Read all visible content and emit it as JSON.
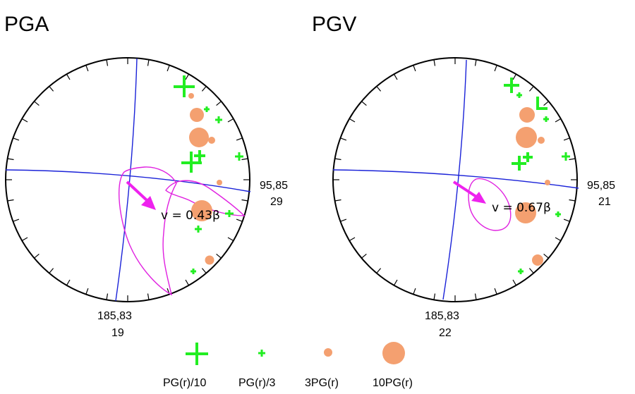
{
  "colors": {
    "plus": "#22ee22",
    "circle": "#f4a070",
    "plane": "#1a22d8",
    "contour": "#e020e0",
    "arrow": "#ee22ee",
    "outline": "#000000"
  },
  "panels": [
    {
      "title": "PGA",
      "label_east_top": "95,85",
      "label_east_bottom": "29",
      "label_south_top": "185,83",
      "label_south_bottom": "19",
      "velocity_label": "v = 0.43β"
    },
    {
      "title": "PGV",
      "label_east_top": "95,85",
      "label_east_bottom": "21",
      "label_south_top": "185,83",
      "label_south_bottom": "22",
      "velocity_label": "v = 0.67β"
    }
  ],
  "legend": [
    {
      "label": "PG(r)/10",
      "symbol": "plus-large"
    },
    {
      "label": "PG(r)/3",
      "symbol": "plus-small"
    },
    {
      "label": "3PG(r)",
      "symbol": "circle-small"
    },
    {
      "label": "10PG(r)",
      "symbol": "circle-large"
    }
  ]
}
